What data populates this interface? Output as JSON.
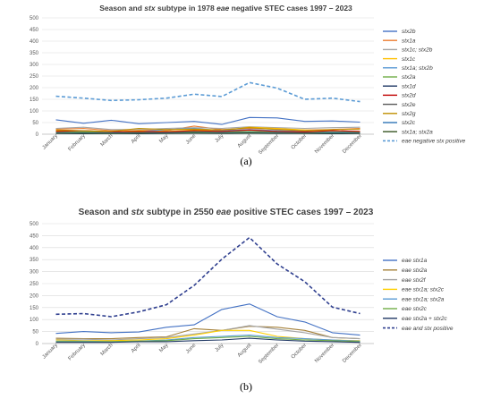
{
  "chart_data": [
    {
      "type": "line",
      "title_parts": [
        {
          "t": "Season and ",
          "i": false
        },
        {
          "t": "stx",
          "i": true
        },
        {
          "t": " subtype in 1978 ",
          "i": false
        },
        {
          "t": "eae",
          "i": true
        },
        {
          "t": " negative STEC cases 1997 – 2023",
          "i": false
        }
      ],
      "caption": "(a)",
      "categories": [
        "January",
        "February",
        "March",
        "April",
        "May",
        "June",
        "July",
        "August",
        "September",
        "October",
        "November",
        "December"
      ],
      "yticks": [
        0,
        50,
        100,
        150,
        200,
        250,
        300,
        350,
        400,
        450,
        500
      ],
      "ylim": [
        0,
        500
      ],
      "grid": true,
      "legend_position": "right",
      "series": [
        {
          "name": "stx2b",
          "color": "#4472c4",
          "dashed": false,
          "values": [
            62,
            47,
            60,
            45,
            50,
            55,
            42,
            72,
            70,
            55,
            57,
            52
          ]
        },
        {
          "name": "stx1a",
          "color": "#ed7d31",
          "dashed": false,
          "values": [
            22,
            25,
            15,
            20,
            15,
            35,
            20,
            25,
            22,
            18,
            20,
            25
          ]
        },
        {
          "name": "stx1c; stx2b",
          "color": "#a5a5a5",
          "dashed": false,
          "values": [
            25,
            30,
            20,
            20,
            25,
            28,
            25,
            32,
            28,
            25,
            28,
            30
          ]
        },
        {
          "name": "stx1c",
          "color": "#ffc000",
          "dashed": false,
          "values": [
            15,
            12,
            10,
            15,
            12,
            18,
            15,
            30,
            25,
            18,
            15,
            12
          ]
        },
        {
          "name": "stx1a; stx2b",
          "color": "#5b9bd5",
          "dashed": false,
          "values": [
            10,
            12,
            8,
            10,
            20,
            25,
            15,
            20,
            15,
            12,
            10,
            10
          ]
        },
        {
          "name": "stx2a",
          "color": "#70ad47",
          "dashed": false,
          "values": [
            8,
            10,
            8,
            8,
            10,
            12,
            10,
            12,
            10,
            8,
            8,
            8
          ]
        },
        {
          "name": "stx1d",
          "color": "#1f3864",
          "dashed": false,
          "values": [
            3,
            2,
            3,
            2,
            3,
            4,
            3,
            4,
            3,
            3,
            2,
            3
          ]
        },
        {
          "name": "stx2d",
          "color": "#c00000",
          "dashed": false,
          "values": [
            12,
            15,
            10,
            12,
            10,
            15,
            12,
            18,
            12,
            10,
            15,
            12
          ]
        },
        {
          "name": "stx2e",
          "color": "#595959",
          "dashed": false,
          "values": [
            5,
            6,
            5,
            5,
            6,
            8,
            6,
            8,
            6,
            5,
            5,
            5
          ]
        },
        {
          "name": "stx2g",
          "color": "#bf8f00",
          "dashed": false,
          "values": [
            18,
            15,
            12,
            25,
            20,
            22,
            18,
            28,
            20,
            15,
            20,
            22
          ]
        },
        {
          "name": "stx2c",
          "color": "#2e75b6",
          "dashed": false,
          "values": [
            6,
            5,
            6,
            5,
            6,
            7,
            6,
            7,
            6,
            5,
            6,
            6
          ]
        },
        {
          "name": "stx1a; stx2a",
          "color": "#375623",
          "dashed": false,
          "values": [
            4,
            4,
            3,
            4,
            4,
            5,
            4,
            5,
            4,
            4,
            4,
            4
          ]
        },
        {
          "name": "eae negative stx positive",
          "color": "#5b9bd5",
          "dashed": true,
          "values": [
            163,
            155,
            145,
            148,
            155,
            172,
            162,
            222,
            198,
            150,
            155,
            140
          ]
        }
      ]
    },
    {
      "type": "line",
      "title_parts": [
        {
          "t": "Season and ",
          "i": false
        },
        {
          "t": "stx",
          "i": true
        },
        {
          "t": " subtype in 2550 ",
          "i": false
        },
        {
          "t": "eae",
          "i": true
        },
        {
          "t": " positive STEC cases 1997 – 2023",
          "i": false
        }
      ],
      "caption": "(b)",
      "categories": [
        "January",
        "February",
        "March",
        "April",
        "May",
        "June",
        "July",
        "August",
        "September",
        "October",
        "November",
        "December"
      ],
      "yticks": [
        0,
        50,
        100,
        150,
        200,
        250,
        300,
        350,
        400,
        450,
        500
      ],
      "ylim": [
        0,
        500
      ],
      "grid": true,
      "legend_position": "right",
      "series": [
        {
          "name": "eae stx1a",
          "color": "#4472c4",
          "dashed": false,
          "values": [
            42,
            50,
            45,
            48,
            68,
            78,
            142,
            165,
            112,
            90,
            45,
            35
          ]
        },
        {
          "name": "eae stx2a",
          "color": "#a5813a",
          "dashed": false,
          "values": [
            22,
            20,
            20,
            25,
            28,
            62,
            55,
            72,
            68,
            55,
            25,
            20
          ]
        },
        {
          "name": "eae stx2f",
          "color": "#a5a5a5",
          "dashed": false,
          "values": [
            18,
            18,
            15,
            20,
            25,
            40,
            55,
            75,
            60,
            45,
            25,
            20
          ]
        },
        {
          "name": "eae stx1a; stx2c",
          "color": "#ffd000",
          "dashed": false,
          "values": [
            15,
            12,
            12,
            15,
            20,
            35,
            55,
            55,
            30,
            20,
            15,
            12
          ]
        },
        {
          "name": "eae stx1a; stx2a",
          "color": "#5b9bd5",
          "dashed": false,
          "values": [
            10,
            10,
            8,
            10,
            15,
            25,
            30,
            35,
            25,
            20,
            15,
            10
          ]
        },
        {
          "name": "eae stx2c",
          "color": "#70ad47",
          "dashed": false,
          "values": [
            8,
            8,
            8,
            10,
            12,
            20,
            25,
            30,
            20,
            15,
            12,
            8
          ]
        },
        {
          "name": "eae stx2a + stx2c",
          "color": "#203864",
          "dashed": false,
          "values": [
            5,
            5,
            5,
            8,
            8,
            12,
            15,
            22,
            15,
            10,
            8,
            5
          ]
        },
        {
          "name": "eae  and stx positive",
          "color": "#2f3f8f",
          "dashed": true,
          "values": [
            122,
            125,
            112,
            132,
            162,
            242,
            352,
            442,
            332,
            258,
            152,
            125
          ]
        }
      ]
    }
  ]
}
